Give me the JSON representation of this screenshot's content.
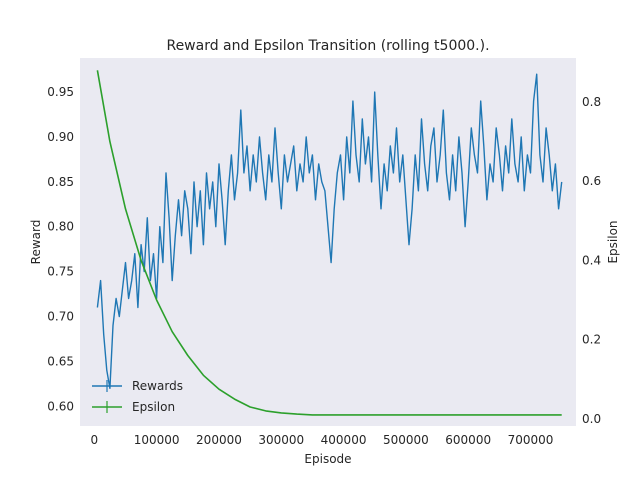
{
  "chart_data": {
    "type": "line",
    "title": "Reward and Epsilon Transition (rolling t5000.).",
    "xlabel": "Episode",
    "ylabel": "Reward",
    "y2label": "Epsilon",
    "xlim": [
      -23000,
      773000
    ],
    "ylim": [
      0.578,
      0.988
    ],
    "y2lim": [
      -0.018,
      0.911
    ],
    "xticks": [
      0,
      100000,
      200000,
      300000,
      400000,
      500000,
      600000,
      700000
    ],
    "yticks": [
      0.6,
      0.65,
      0.7,
      0.75,
      0.8,
      0.85,
      0.9,
      0.95
    ],
    "y2ticks": [
      0.0,
      0.2,
      0.4,
      0.6,
      0.8
    ],
    "grid": false,
    "legend_position": "lower-left",
    "series": [
      {
        "name": "Rewards",
        "color": "#1f77b4",
        "axis": "left",
        "x": [
          5000,
          10000,
          15000,
          20000,
          25000,
          30000,
          35000,
          40000,
          45000,
          50000,
          55000,
          60000,
          65000,
          70000,
          75000,
          80000,
          85000,
          90000,
          95000,
          100000,
          105000,
          110000,
          115000,
          120000,
          125000,
          130000,
          135000,
          140000,
          145000,
          150000,
          155000,
          160000,
          165000,
          170000,
          175000,
          180000,
          185000,
          190000,
          195000,
          200000,
          205000,
          210000,
          215000,
          220000,
          225000,
          230000,
          235000,
          240000,
          245000,
          250000,
          255000,
          260000,
          265000,
          270000,
          275000,
          280000,
          285000,
          290000,
          295000,
          300000,
          305000,
          310000,
          315000,
          320000,
          325000,
          330000,
          335000,
          340000,
          345000,
          350000,
          355000,
          360000,
          365000,
          370000,
          375000,
          380000,
          385000,
          390000,
          395000,
          400000,
          405000,
          410000,
          415000,
          420000,
          425000,
          430000,
          435000,
          440000,
          445000,
          450000,
          455000,
          460000,
          465000,
          470000,
          475000,
          480000,
          485000,
          490000,
          495000,
          500000,
          505000,
          510000,
          515000,
          520000,
          525000,
          530000,
          535000,
          540000,
          545000,
          550000,
          555000,
          560000,
          565000,
          570000,
          575000,
          580000,
          585000,
          590000,
          595000,
          600000,
          605000,
          610000,
          615000,
          620000,
          625000,
          630000,
          635000,
          640000,
          645000,
          650000,
          655000,
          660000,
          665000,
          670000,
          675000,
          680000,
          685000,
          690000,
          695000,
          700000,
          705000,
          710000,
          715000,
          720000,
          725000,
          730000,
          735000,
          740000,
          745000,
          750000
        ],
        "values": [
          0.71,
          0.74,
          0.68,
          0.64,
          0.62,
          0.69,
          0.72,
          0.7,
          0.73,
          0.76,
          0.72,
          0.74,
          0.77,
          0.71,
          0.78,
          0.75,
          0.81,
          0.74,
          0.77,
          0.72,
          0.8,
          0.76,
          0.86,
          0.81,
          0.74,
          0.79,
          0.83,
          0.79,
          0.84,
          0.82,
          0.77,
          0.85,
          0.8,
          0.84,
          0.78,
          0.86,
          0.82,
          0.85,
          0.8,
          0.87,
          0.83,
          0.78,
          0.84,
          0.88,
          0.83,
          0.86,
          0.93,
          0.86,
          0.89,
          0.84,
          0.88,
          0.85,
          0.9,
          0.86,
          0.83,
          0.88,
          0.85,
          0.91,
          0.86,
          0.82,
          0.88,
          0.85,
          0.87,
          0.89,
          0.84,
          0.87,
          0.85,
          0.9,
          0.86,
          0.88,
          0.83,
          0.87,
          0.85,
          0.84,
          0.8,
          0.76,
          0.82,
          0.86,
          0.88,
          0.83,
          0.9,
          0.86,
          0.94,
          0.88,
          0.85,
          0.92,
          0.87,
          0.9,
          0.85,
          0.95,
          0.88,
          0.82,
          0.87,
          0.84,
          0.89,
          0.86,
          0.91,
          0.85,
          0.88,
          0.83,
          0.78,
          0.82,
          0.88,
          0.84,
          0.92,
          0.87,
          0.84,
          0.89,
          0.91,
          0.85,
          0.88,
          0.93,
          0.86,
          0.83,
          0.88,
          0.84,
          0.9,
          0.86,
          0.8,
          0.85,
          0.91,
          0.88,
          0.86,
          0.94,
          0.89,
          0.83,
          0.87,
          0.85,
          0.91,
          0.88,
          0.84,
          0.89,
          0.86,
          0.92,
          0.87,
          0.85,
          0.9,
          0.84,
          0.88,
          0.86,
          0.94,
          0.97,
          0.88,
          0.85,
          0.91,
          0.88,
          0.84,
          0.87,
          0.82,
          0.85
        ]
      },
      {
        "name": "Epsilon",
        "color": "#2ca02c",
        "axis": "right",
        "x": [
          5000,
          25000,
          50000,
          75000,
          100000,
          125000,
          150000,
          175000,
          200000,
          225000,
          250000,
          275000,
          300000,
          325000,
          350000,
          362000,
          400000,
          450000,
          500000,
          550000,
          600000,
          650000,
          700000,
          750000
        ],
        "values": [
          0.88,
          0.7,
          0.53,
          0.4,
          0.3,
          0.22,
          0.16,
          0.11,
          0.075,
          0.05,
          0.03,
          0.02,
          0.015,
          0.012,
          0.01,
          0.01,
          0.01,
          0.01,
          0.01,
          0.01,
          0.01,
          0.01,
          0.01,
          0.01
        ]
      }
    ]
  }
}
